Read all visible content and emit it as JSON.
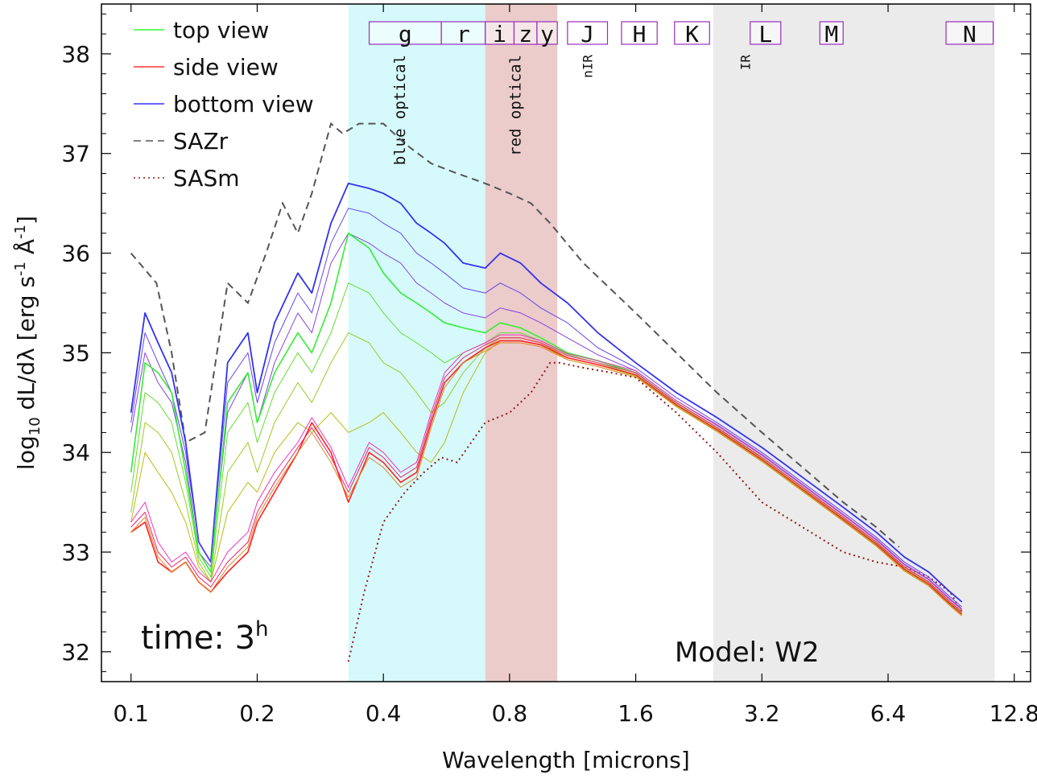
{
  "chart_data": {
    "type": "line",
    "xlabel": "Wavelength [microns]",
    "ylabel": "log10 dL/dλ [erg s-1 Å-1]",
    "ylabel_parts": {
      "log": "log",
      "sub": "10",
      "mid": " dL/dλ [erg s",
      "sup1": "-1",
      "mid2": " Å",
      "sup2": "-1",
      "end": "]"
    },
    "xscale": "log2",
    "xlim": [
      0.085,
      14.0
    ],
    "ylim": [
      31.7,
      38.5
    ],
    "xticks": [
      0.1,
      0.2,
      0.4,
      0.8,
      1.6,
      3.2,
      6.4,
      12.8
    ],
    "xtick_labels": [
      "0.1",
      "0.2",
      "0.4",
      "0.8",
      "1.6",
      "3.2",
      "6.4",
      "12.8"
    ],
    "yticks": [
      32,
      33,
      34,
      35,
      36,
      37,
      38
    ],
    "ytick_labels": [
      "32",
      "33",
      "34",
      "35",
      "36",
      "37",
      "38"
    ],
    "annotations": {
      "time_label": "time: 3",
      "time_sup": "h",
      "model_label": "Model: W2"
    },
    "regions": [
      {
        "name": "blue optical",
        "x0": 0.33,
        "x1": 0.7,
        "color": "#d6fafc"
      },
      {
        "name": "red optical",
        "x0": 0.7,
        "x1": 1.04,
        "color": "#eccbcb"
      },
      {
        "name": "IR",
        "x0": 2.45,
        "x1": 11.5,
        "color": "#ebebeb"
      }
    ],
    "region_labels": [
      {
        "text": "blue optical",
        "x": 0.45
      },
      {
        "text": "red optical",
        "x": 0.85
      },
      {
        "text": "nIR",
        "x": 1.26
      },
      {
        "text": "IR",
        "x": 3.0
      }
    ],
    "bands": [
      {
        "label": "g",
        "x0": 0.37,
        "x1": 0.55
      },
      {
        "label": "r",
        "x0": 0.55,
        "x1": 0.7
      },
      {
        "label": "i",
        "x0": 0.7,
        "x1": 0.82
      },
      {
        "label": "z",
        "x0": 0.82,
        "x1": 0.93
      },
      {
        "label": "y",
        "x0": 0.93,
        "x1": 1.04
      },
      {
        "label": "J",
        "x0": 1.1,
        "x1": 1.37
      },
      {
        "label": "H",
        "x0": 1.48,
        "x1": 1.8
      },
      {
        "label": "K",
        "x0": 1.98,
        "x1": 2.4
      },
      {
        "label": "L",
        "x0": 3.0,
        "x1": 3.55
      },
      {
        "label": "M",
        "x0": 4.4,
        "x1": 5.0
      },
      {
        "label": "N",
        "x0": 8.8,
        "x1": 11.4
      }
    ],
    "legend": {
      "position": "top-left",
      "entries": [
        {
          "label": "top view",
          "color": "#33ff33",
          "style": "solid"
        },
        {
          "label": "side view",
          "color": "#ff3333",
          "style": "solid"
        },
        {
          "label": "bottom view",
          "color": "#3333ff",
          "style": "solid"
        },
        {
          "label": "SAZr",
          "color": "#555555",
          "style": "dashed"
        },
        {
          "label": "SASm",
          "color": "#8b1a1a",
          "style": "dotted"
        }
      ]
    },
    "x": [
      0.1,
      0.108,
      0.116,
      0.125,
      0.135,
      0.145,
      0.155,
      0.17,
      0.19,
      0.2,
      0.22,
      0.25,
      0.27,
      0.3,
      0.33,
      0.37,
      0.4,
      0.44,
      0.48,
      0.52,
      0.56,
      0.62,
      0.7,
      0.76,
      0.85,
      0.95,
      1.1,
      1.3,
      1.6,
      2.0,
      2.5,
      3.2,
      4.0,
      5.0,
      6.0,
      7.0,
      8.0,
      9.0,
      9.6
    ],
    "series": [
      {
        "name": "bottom view (extreme)",
        "group": "bottom",
        "color": "#3333ee",
        "width": 1.8,
        "values": [
          34.4,
          35.4,
          35.1,
          34.8,
          34.1,
          33.1,
          32.9,
          34.9,
          35.2,
          34.6,
          35.3,
          35.8,
          35.6,
          36.3,
          36.7,
          36.65,
          36.6,
          36.5,
          36.3,
          36.2,
          36.1,
          35.9,
          35.85,
          36.0,
          35.9,
          35.7,
          35.5,
          35.2,
          34.9,
          34.6,
          34.35,
          34.05,
          33.75,
          33.45,
          33.2,
          32.95,
          32.8,
          32.6,
          32.5
        ]
      },
      {
        "name": "bottom view 2",
        "group": "bottom",
        "color": "#6644ee",
        "width": 1,
        "values": [
          34.3,
          35.2,
          34.9,
          34.6,
          34.0,
          33.1,
          32.9,
          34.7,
          35.0,
          34.5,
          35.1,
          35.6,
          35.4,
          36.1,
          36.45,
          36.4,
          36.3,
          36.2,
          36.0,
          35.9,
          35.8,
          35.65,
          35.6,
          35.7,
          35.6,
          35.45,
          35.3,
          35.05,
          34.85,
          34.55,
          34.3,
          34.0,
          33.7,
          33.4,
          33.15,
          32.9,
          32.75,
          32.55,
          32.45
        ]
      },
      {
        "name": "bottom view 3",
        "group": "bottom",
        "color": "#8844dd",
        "width": 1,
        "values": [
          34.2,
          35.0,
          34.7,
          34.5,
          33.9,
          33.0,
          32.85,
          34.4,
          34.8,
          34.3,
          34.9,
          35.4,
          35.2,
          35.9,
          36.2,
          36.1,
          36.0,
          35.9,
          35.7,
          35.6,
          35.5,
          35.4,
          35.35,
          35.45,
          35.4,
          35.3,
          35.15,
          34.98,
          34.82,
          34.52,
          34.28,
          33.98,
          33.68,
          33.38,
          33.13,
          32.88,
          32.73,
          32.53,
          32.43
        ]
      },
      {
        "name": "top view (extreme)",
        "group": "top",
        "color": "#33ee33",
        "width": 1.6,
        "values": [
          33.8,
          34.9,
          34.8,
          34.6,
          33.8,
          33.0,
          32.8,
          34.5,
          34.8,
          34.3,
          34.8,
          35.2,
          35.0,
          35.5,
          36.2,
          36.05,
          35.8,
          35.6,
          35.5,
          35.4,
          35.3,
          35.25,
          35.2,
          35.3,
          35.25,
          35.15,
          35.0,
          34.92,
          34.8,
          34.5,
          34.25,
          33.95,
          33.65,
          33.35,
          33.1,
          32.85,
          32.7,
          32.5,
          32.4
        ]
      },
      {
        "name": "top view 2",
        "group": "top",
        "color": "#66dd33",
        "width": 1,
        "values": [
          33.6,
          34.6,
          34.5,
          34.3,
          33.7,
          32.95,
          32.75,
          34.2,
          34.5,
          34.1,
          34.6,
          35.0,
          34.8,
          35.2,
          35.7,
          35.6,
          35.4,
          35.2,
          35.1,
          35.0,
          34.9,
          35.0,
          35.1,
          35.2,
          35.2,
          35.12,
          34.98,
          34.9,
          34.78,
          34.48,
          34.23,
          33.93,
          33.63,
          33.33,
          33.08,
          32.83,
          32.68,
          32.48,
          32.38
        ]
      },
      {
        "name": "top view 3",
        "group": "top",
        "color": "#99cc22",
        "width": 1,
        "values": [
          33.4,
          34.3,
          34.2,
          34.0,
          33.5,
          32.9,
          32.7,
          33.8,
          34.1,
          33.8,
          34.3,
          34.7,
          34.5,
          34.9,
          35.2,
          35.1,
          34.9,
          34.8,
          34.6,
          34.4,
          34.5,
          34.8,
          35.05,
          35.15,
          35.15,
          35.1,
          34.95,
          34.88,
          34.77,
          34.47,
          34.22,
          33.92,
          33.62,
          33.32,
          33.07,
          32.82,
          32.67,
          32.47,
          32.37
        ]
      },
      {
        "name": "top view 4",
        "group": "top",
        "color": "#bbbb11",
        "width": 1,
        "values": [
          33.3,
          34.0,
          33.8,
          33.6,
          33.3,
          32.85,
          32.7,
          33.4,
          33.7,
          33.6,
          34.0,
          34.3,
          34.2,
          34.4,
          34.2,
          34.3,
          34.4,
          34.2,
          34.0,
          33.9,
          34.1,
          34.6,
          35.0,
          35.12,
          35.12,
          35.08,
          34.93,
          34.86,
          34.76,
          34.46,
          34.21,
          33.91,
          33.61,
          33.31,
          33.06,
          32.81,
          32.66,
          32.46,
          32.36
        ]
      },
      {
        "name": "side view (extreme)",
        "group": "side",
        "color": "#ff2222",
        "width": 1.6,
        "values": [
          33.2,
          33.3,
          32.9,
          32.8,
          32.9,
          32.7,
          32.6,
          32.8,
          33.0,
          33.3,
          33.6,
          34.0,
          34.3,
          34.0,
          33.5,
          34.0,
          33.9,
          33.7,
          33.8,
          34.3,
          34.7,
          34.9,
          35.05,
          35.12,
          35.12,
          35.08,
          34.95,
          34.88,
          34.78,
          34.48,
          34.23,
          33.93,
          33.63,
          33.33,
          33.08,
          32.83,
          32.68,
          32.48,
          32.38
        ]
      },
      {
        "name": "side view 2",
        "group": "side",
        "color": "#ee2266",
        "width": 1,
        "values": [
          33.25,
          33.4,
          33.0,
          32.85,
          32.95,
          32.75,
          32.65,
          32.9,
          33.1,
          33.4,
          33.7,
          34.05,
          34.25,
          33.95,
          33.6,
          34.05,
          33.95,
          33.75,
          33.85,
          34.35,
          34.75,
          34.95,
          35.08,
          35.15,
          35.15,
          35.1,
          34.97,
          34.9,
          34.8,
          34.5,
          34.25,
          33.95,
          33.65,
          33.35,
          33.1,
          32.85,
          32.7,
          32.5,
          32.4
        ]
      },
      {
        "name": "side view 3",
        "group": "side",
        "color": "#ee33bb",
        "width": 1,
        "values": [
          33.3,
          33.5,
          33.1,
          32.9,
          33.0,
          32.8,
          32.7,
          33.0,
          33.2,
          33.5,
          33.8,
          34.1,
          34.35,
          34.05,
          33.65,
          34.1,
          34.0,
          33.8,
          33.9,
          34.4,
          34.8,
          35.0,
          35.1,
          35.18,
          35.18,
          35.12,
          34.99,
          34.92,
          34.82,
          34.52,
          34.27,
          33.97,
          33.67,
          33.37,
          33.12,
          32.87,
          32.72,
          32.52,
          32.42
        ]
      },
      {
        "name": "side view 4",
        "group": "side",
        "color": "#dd8822",
        "width": 1,
        "values": [
          33.2,
          33.35,
          32.95,
          32.8,
          32.9,
          32.7,
          32.6,
          32.85,
          33.05,
          33.35,
          33.65,
          34.0,
          34.2,
          33.9,
          33.55,
          33.95,
          33.85,
          33.65,
          33.75,
          34.25,
          34.65,
          34.9,
          35.02,
          35.1,
          35.1,
          35.06,
          34.93,
          34.86,
          34.76,
          34.46,
          34.21,
          33.91,
          33.61,
          33.31,
          33.06,
          32.81,
          32.66,
          32.46,
          32.36
        ]
      }
    ],
    "reference_curves": [
      {
        "name": "SAZr",
        "color": "#555555",
        "style": "dashed",
        "x": [
          0.1,
          0.115,
          0.125,
          0.135,
          0.15,
          0.17,
          0.19,
          0.21,
          0.23,
          0.25,
          0.27,
          0.3,
          0.32,
          0.35,
          0.4,
          0.45,
          0.52,
          0.6,
          0.7,
          0.8,
          0.9,
          1.0,
          1.2,
          1.6,
          2.0,
          2.5,
          3.2,
          4.0,
          5.0,
          6.0,
          6.8
        ],
        "values": [
          36.0,
          35.7,
          35.0,
          34.1,
          34.2,
          35.7,
          35.5,
          36.0,
          36.5,
          36.2,
          36.6,
          37.3,
          37.2,
          37.3,
          37.3,
          37.1,
          36.9,
          36.8,
          36.7,
          36.6,
          36.5,
          36.3,
          35.9,
          35.4,
          35.0,
          34.6,
          34.2,
          33.85,
          33.5,
          33.25,
          33.05
        ]
      },
      {
        "name": "SASm",
        "color": "#8b1a1a",
        "style": "dotted",
        "x": [
          0.33,
          0.36,
          0.4,
          0.45,
          0.5,
          0.55,
          0.6,
          0.7,
          0.8,
          0.9,
          1.0,
          1.05,
          1.2,
          1.4,
          1.6,
          2.0,
          2.5,
          3.2,
          4.0,
          5.0,
          6.0,
          7.0,
          8.0,
          9.0,
          9.6
        ],
        "values": [
          31.9,
          32.6,
          33.3,
          33.6,
          33.8,
          33.95,
          33.9,
          34.3,
          34.4,
          34.6,
          34.9,
          34.9,
          34.85,
          34.8,
          34.75,
          34.4,
          34.0,
          33.5,
          33.25,
          33.0,
          32.9,
          32.85,
          32.75,
          32.6,
          32.4
        ]
      }
    ]
  }
}
